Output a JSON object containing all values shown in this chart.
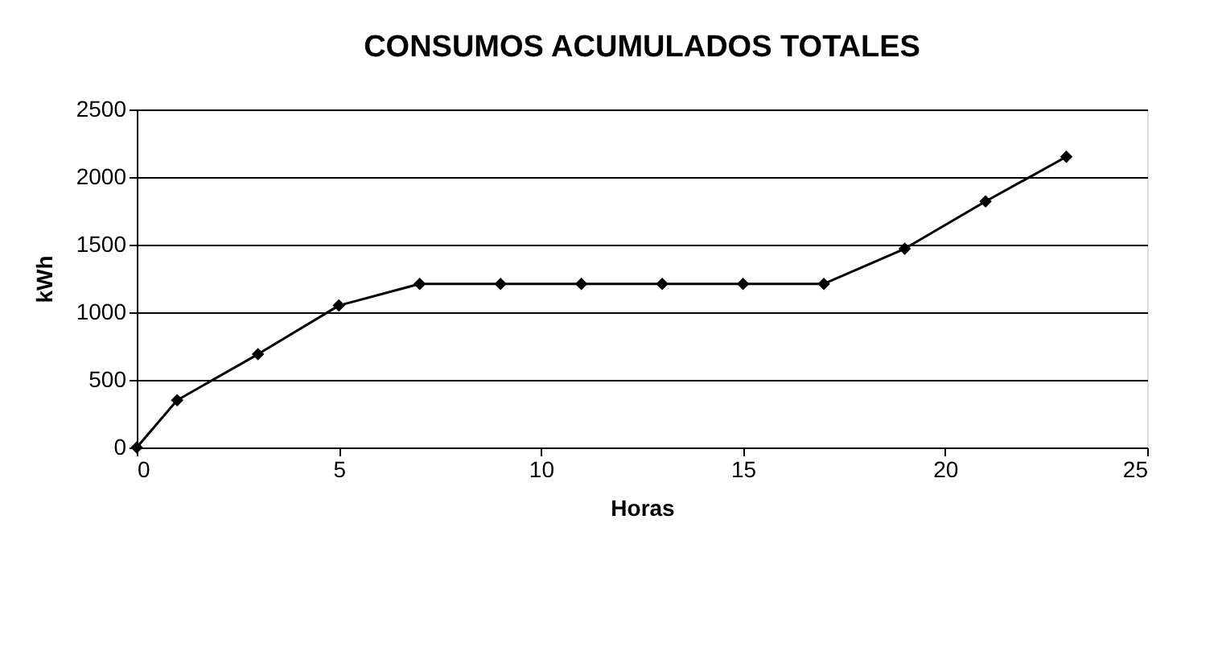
{
  "chart_data": {
    "type": "line",
    "title": "CONSUMOS ACUMULADOS TOTALES",
    "xlabel": "Horas",
    "ylabel": "kWh",
    "x": [
      0,
      1,
      3,
      5,
      7,
      9,
      11,
      13,
      15,
      17,
      19,
      21,
      23
    ],
    "series": [
      {
        "color": "#000000",
        "values": [
          0,
          350,
          690,
          1050,
          1210,
          1210,
          1210,
          1210,
          1210,
          1210,
          1470,
          1820,
          2150
        ]
      }
    ],
    "xlim": [
      0,
      25
    ],
    "xticks": [
      0,
      5,
      10,
      15,
      20,
      25
    ],
    "ylim": [
      0,
      2500
    ],
    "yticks": [
      0,
      500,
      1000,
      1500,
      2000,
      2500
    ],
    "grid": "y",
    "marker": "diamond",
    "line_style": "solid"
  }
}
